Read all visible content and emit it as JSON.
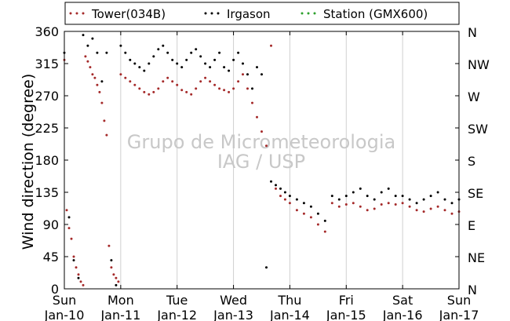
{
  "chart_data": {
    "type": "scatter",
    "ylabel": "Wind direction (degree)",
    "ylim": [
      0,
      360
    ],
    "yticks": [
      0,
      45,
      90,
      135,
      180,
      225,
      270,
      315,
      360
    ],
    "right_ticks": [
      {
        "value": 0,
        "label": "N"
      },
      {
        "value": 45,
        "label": "NE"
      },
      {
        "value": 90,
        "label": "E"
      },
      {
        "value": 135,
        "label": "SE"
      },
      {
        "value": 180,
        "label": "S"
      },
      {
        "value": 225,
        "label": "SW"
      },
      {
        "value": 270,
        "label": "W"
      },
      {
        "value": 315,
        "label": "NW"
      },
      {
        "value": 360,
        "label": "N"
      }
    ],
    "xlim": [
      "2016-01-10",
      "2016-01-17"
    ],
    "xticks": [
      {
        "date": "2016-01-10",
        "day": "Sun",
        "date_label": "Jan-10"
      },
      {
        "date": "2016-01-11",
        "day": "Mon",
        "date_label": "Jan-11"
      },
      {
        "date": "2016-01-12",
        "day": "Tue",
        "date_label": "Jan-12"
      },
      {
        "date": "2016-01-13",
        "day": "Wed",
        "date_label": "Jan-13"
      },
      {
        "date": "2016-01-14",
        "day": "Thu",
        "date_label": "Jan-14"
      },
      {
        "date": "2016-01-15",
        "day": "Fri",
        "date_label": "Jan-15"
      },
      {
        "date": "2016-01-16",
        "day": "Sat",
        "date_label": "Jan-16"
      },
      {
        "date": "2016-01-17",
        "day": "Sun",
        "date_label": "Jan-17"
      }
    ],
    "grid": "vertical",
    "legend_position": "top",
    "watermark": [
      "Grupo de Micrometeorologia",
      "IAG / USP"
    ],
    "series": [
      {
        "name": "Tower(034B)",
        "color": "#a52a2a",
        "points": [
          [
            "2016-01-10T00:00",
            320
          ],
          [
            "2016-01-10T01:00",
            110
          ],
          [
            "2016-01-10T02:00",
            85
          ],
          [
            "2016-01-10T03:00",
            70
          ],
          [
            "2016-01-10T04:00",
            45
          ],
          [
            "2016-01-10T05:00",
            30
          ],
          [
            "2016-01-10T06:00",
            20
          ],
          [
            "2016-01-10T07:00",
            10
          ],
          [
            "2016-01-10T08:00",
            5
          ],
          [
            "2016-01-10T09:00",
            325
          ],
          [
            "2016-01-10T10:00",
            318
          ],
          [
            "2016-01-10T11:00",
            310
          ],
          [
            "2016-01-10T12:00",
            300
          ],
          [
            "2016-01-10T13:00",
            295
          ],
          [
            "2016-01-10T14:00",
            285
          ],
          [
            "2016-01-10T15:00",
            275
          ],
          [
            "2016-01-10T16:00",
            260
          ],
          [
            "2016-01-10T17:00",
            235
          ],
          [
            "2016-01-10T18:00",
            215
          ],
          [
            "2016-01-10T19:00",
            60
          ],
          [
            "2016-01-10T20:00",
            30
          ],
          [
            "2016-01-10T21:00",
            20
          ],
          [
            "2016-01-10T22:00",
            15
          ],
          [
            "2016-01-10T23:00",
            10
          ],
          [
            "2016-01-11T00:00",
            300
          ],
          [
            "2016-01-11T02:00",
            295
          ],
          [
            "2016-01-11T04:00",
            290
          ],
          [
            "2016-01-11T06:00",
            285
          ],
          [
            "2016-01-11T08:00",
            280
          ],
          [
            "2016-01-11T10:00",
            275
          ],
          [
            "2016-01-11T12:00",
            272
          ],
          [
            "2016-01-11T14:00",
            275
          ],
          [
            "2016-01-11T16:00",
            280
          ],
          [
            "2016-01-11T18:00",
            290
          ],
          [
            "2016-01-11T20:00",
            295
          ],
          [
            "2016-01-11T22:00",
            290
          ],
          [
            "2016-01-12T00:00",
            285
          ],
          [
            "2016-01-12T02:00",
            278
          ],
          [
            "2016-01-12T04:00",
            275
          ],
          [
            "2016-01-12T06:00",
            272
          ],
          [
            "2016-01-12T08:00",
            280
          ],
          [
            "2016-01-12T10:00",
            290
          ],
          [
            "2016-01-12T12:00",
            295
          ],
          [
            "2016-01-12T14:00",
            290
          ],
          [
            "2016-01-12T16:00",
            285
          ],
          [
            "2016-01-12T18:00",
            280
          ],
          [
            "2016-01-12T20:00",
            278
          ],
          [
            "2016-01-12T22:00",
            275
          ],
          [
            "2016-01-13T00:00",
            280
          ],
          [
            "2016-01-13T02:00",
            290
          ],
          [
            "2016-01-13T04:00",
            300
          ],
          [
            "2016-01-13T06:00",
            280
          ],
          [
            "2016-01-13T08:00",
            260
          ],
          [
            "2016-01-13T10:00",
            240
          ],
          [
            "2016-01-13T12:00",
            220
          ],
          [
            "2016-01-13T14:00",
            200
          ],
          [
            "2016-01-13T16:00",
            340
          ],
          [
            "2016-01-13T18:00",
            140
          ],
          [
            "2016-01-13T20:00",
            130
          ],
          [
            "2016-01-13T22:00",
            125
          ],
          [
            "2016-01-14T00:00",
            120
          ],
          [
            "2016-01-14T03:00",
            110
          ],
          [
            "2016-01-14T06:00",
            105
          ],
          [
            "2016-01-14T09:00",
            100
          ],
          [
            "2016-01-14T12:00",
            90
          ],
          [
            "2016-01-14T15:00",
            80
          ],
          [
            "2016-01-14T18:00",
            120
          ],
          [
            "2016-01-14T21:00",
            115
          ],
          [
            "2016-01-15T00:00",
            118
          ],
          [
            "2016-01-15T03:00",
            120
          ],
          [
            "2016-01-15T06:00",
            115
          ],
          [
            "2016-01-15T09:00",
            110
          ],
          [
            "2016-01-15T12:00",
            112
          ],
          [
            "2016-01-15T15:00",
            118
          ],
          [
            "2016-01-15T18:00",
            120
          ],
          [
            "2016-01-15T21:00",
            118
          ],
          [
            "2016-01-16T00:00",
            120
          ],
          [
            "2016-01-16T03:00",
            115
          ],
          [
            "2016-01-16T06:00",
            110
          ],
          [
            "2016-01-16T09:00",
            108
          ],
          [
            "2016-01-16T12:00",
            112
          ],
          [
            "2016-01-16T15:00",
            115
          ],
          [
            "2016-01-16T18:00",
            110
          ],
          [
            "2016-01-16T21:00",
            105
          ],
          [
            "2016-01-17T00:00",
            108
          ]
        ]
      },
      {
        "name": "Irgason",
        "color": "#000000",
        "points": [
          [
            "2016-01-10T00:00",
            330
          ],
          [
            "2016-01-10T02:00",
            100
          ],
          [
            "2016-01-10T04:00",
            40
          ],
          [
            "2016-01-10T06:00",
            15
          ],
          [
            "2016-01-10T08:00",
            355
          ],
          [
            "2016-01-10T10:00",
            340
          ],
          [
            "2016-01-10T12:00",
            350
          ],
          [
            "2016-01-10T14:00",
            330
          ],
          [
            "2016-01-10T16:00",
            290
          ],
          [
            "2016-01-10T18:00",
            330
          ],
          [
            "2016-01-10T20:00",
            40
          ],
          [
            "2016-01-10T22:00",
            5
          ],
          [
            "2016-01-11T00:00",
            340
          ],
          [
            "2016-01-11T02:00",
            330
          ],
          [
            "2016-01-11T04:00",
            320
          ],
          [
            "2016-01-11T06:00",
            315
          ],
          [
            "2016-01-11T08:00",
            310
          ],
          [
            "2016-01-11T10:00",
            305
          ],
          [
            "2016-01-11T12:00",
            315
          ],
          [
            "2016-01-11T14:00",
            325
          ],
          [
            "2016-01-11T16:00",
            335
          ],
          [
            "2016-01-11T18:00",
            340
          ],
          [
            "2016-01-11T20:00",
            330
          ],
          [
            "2016-01-11T22:00",
            320
          ],
          [
            "2016-01-12T00:00",
            315
          ],
          [
            "2016-01-12T02:00",
            310
          ],
          [
            "2016-01-12T04:00",
            320
          ],
          [
            "2016-01-12T06:00",
            330
          ],
          [
            "2016-01-12T08:00",
            335
          ],
          [
            "2016-01-12T10:00",
            325
          ],
          [
            "2016-01-12T12:00",
            315
          ],
          [
            "2016-01-12T14:00",
            310
          ],
          [
            "2016-01-12T16:00",
            320
          ],
          [
            "2016-01-12T18:00",
            330
          ],
          [
            "2016-01-12T20:00",
            310
          ],
          [
            "2016-01-12T22:00",
            305
          ],
          [
            "2016-01-13T00:00",
            320
          ],
          [
            "2016-01-13T02:00",
            330
          ],
          [
            "2016-01-13T04:00",
            315
          ],
          [
            "2016-01-13T06:00",
            300
          ],
          [
            "2016-01-13T08:00",
            280
          ],
          [
            "2016-01-13T10:00",
            310
          ],
          [
            "2016-01-13T12:00",
            300
          ],
          [
            "2016-01-13T14:00",
            30
          ],
          [
            "2016-01-13T16:00",
            150
          ],
          [
            "2016-01-13T18:00",
            145
          ],
          [
            "2016-01-13T20:00",
            140
          ],
          [
            "2016-01-13T22:00",
            135
          ],
          [
            "2016-01-14T00:00",
            130
          ],
          [
            "2016-01-14T03:00",
            125
          ],
          [
            "2016-01-14T06:00",
            120
          ],
          [
            "2016-01-14T09:00",
            115
          ],
          [
            "2016-01-14T12:00",
            105
          ],
          [
            "2016-01-14T15:00",
            95
          ],
          [
            "2016-01-14T18:00",
            130
          ],
          [
            "2016-01-14T21:00",
            125
          ],
          [
            "2016-01-15T00:00",
            130
          ],
          [
            "2016-01-15T03:00",
            135
          ],
          [
            "2016-01-15T06:00",
            140
          ],
          [
            "2016-01-15T09:00",
            130
          ],
          [
            "2016-01-15T12:00",
            125
          ],
          [
            "2016-01-15T15:00",
            135
          ],
          [
            "2016-01-15T18:00",
            140
          ],
          [
            "2016-01-15T21:00",
            130
          ],
          [
            "2016-01-16T00:00",
            130
          ],
          [
            "2016-01-16T03:00",
            125
          ],
          [
            "2016-01-16T06:00",
            120
          ],
          [
            "2016-01-16T09:00",
            125
          ],
          [
            "2016-01-16T12:00",
            130
          ],
          [
            "2016-01-16T15:00",
            135
          ],
          [
            "2016-01-16T18:00",
            125
          ],
          [
            "2016-01-16T21:00",
            120
          ],
          [
            "2016-01-17T00:00",
            125
          ]
        ]
      },
      {
        "name": "Station (GMX600)",
        "color": "#2ca02c",
        "points": []
      }
    ]
  }
}
